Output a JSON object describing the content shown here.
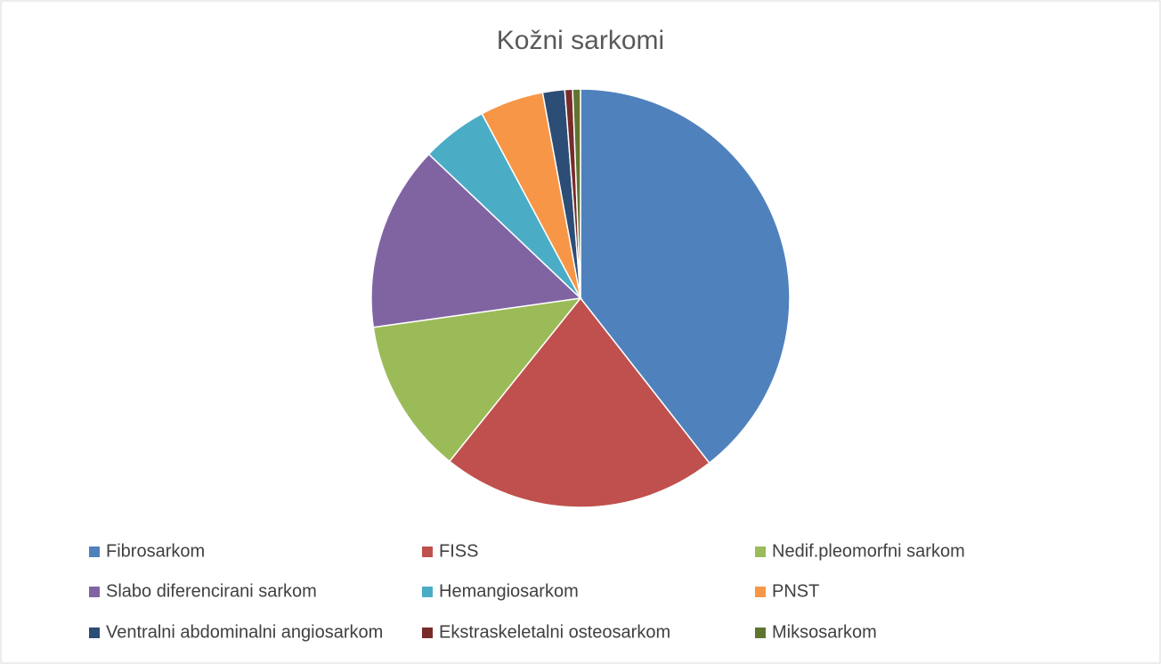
{
  "chart_data": {
    "type": "pie",
    "title": "Kožni sarkomi",
    "categories": [
      "Fibrosarkom",
      "FISS",
      "Nedif.pleomorfni sarkom",
      "Slabo diferencirani sarkom",
      "Hemangiosarkom",
      "PNST",
      "Ventralni abdominalni angiosarkom",
      "Ekstraskeletalni osteosarkom",
      "Miksosarkom"
    ],
    "values": [
      39.4,
      21.3,
      12.0,
      14.3,
      5.1,
      4.9,
      1.7,
      0.6,
      0.6
    ],
    "colors": [
      "#4f81bd",
      "#c0504d",
      "#9bbb59",
      "#8064a2",
      "#4bacc6",
      "#f79646",
      "#2c4d75",
      "#772c2a",
      "#5f7530"
    ],
    "legend": "bottom"
  }
}
